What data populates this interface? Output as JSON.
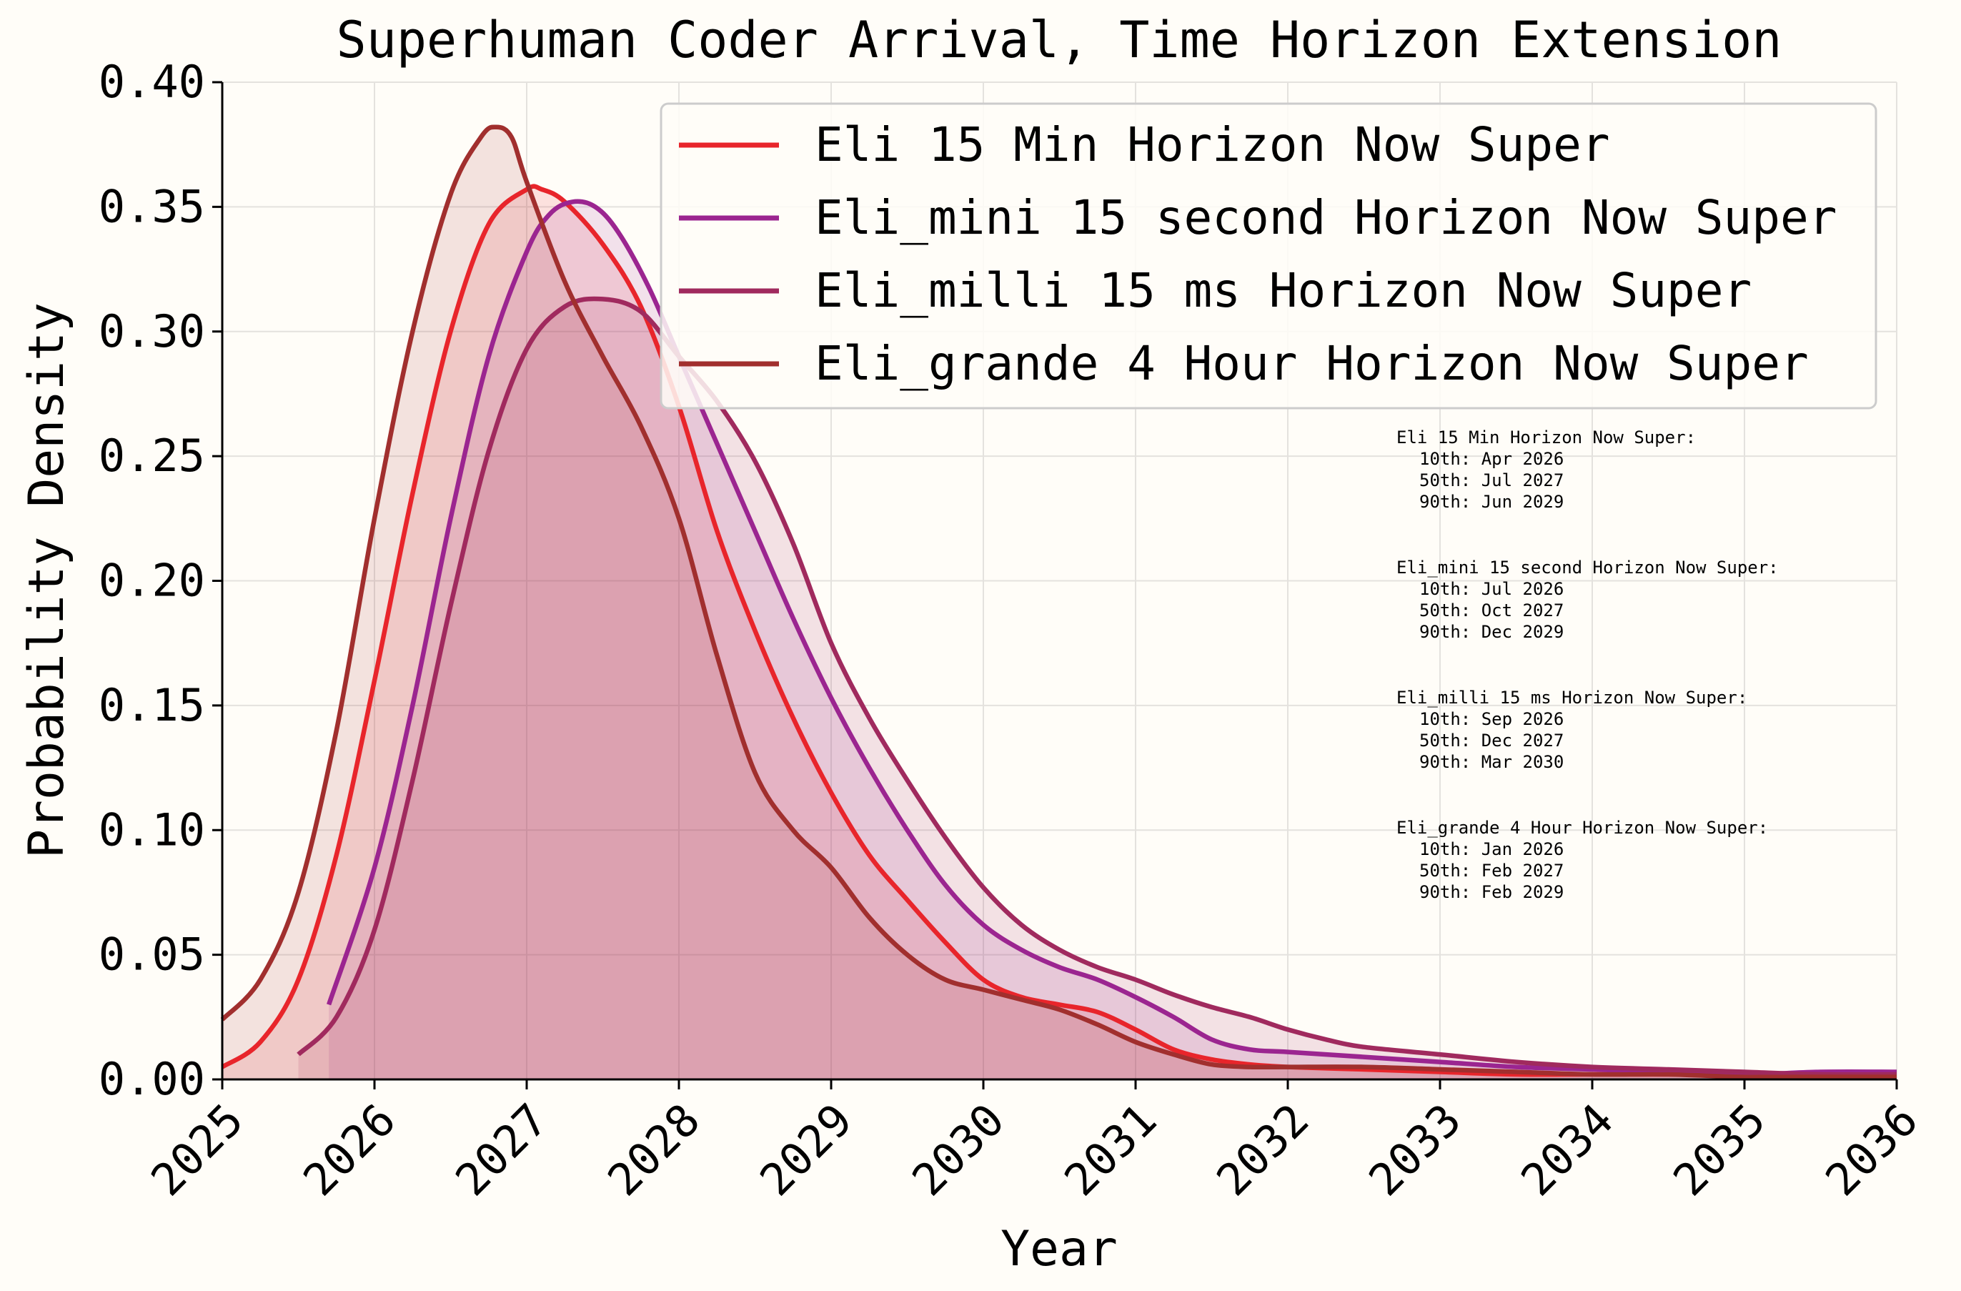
{
  "chart_data": {
    "type": "line",
    "title": "Superhuman Coder Arrival, Time Horizon Extension",
    "xlabel": "Year",
    "ylabel": "Probability Density",
    "xlim": [
      2025,
      2036
    ],
    "ylim": [
      0,
      0.4
    ],
    "grid": true,
    "legend_position": "top-right",
    "x_ticks": [
      "2025",
      "2026",
      "2027",
      "2028",
      "2029",
      "2030",
      "2031",
      "2032",
      "2033",
      "2034",
      "2035",
      "2036"
    ],
    "y_ticks": [
      "0.00",
      "0.05",
      "0.10",
      "0.15",
      "0.20",
      "0.25",
      "0.30",
      "0.35",
      "0.40"
    ],
    "series": [
      {
        "name": "Eli 15 Min Horizon Now Super",
        "color": "#e8252b",
        "x": [
          2025.0,
          2025.25,
          2025.5,
          2025.75,
          2026.0,
          2026.25,
          2026.5,
          2026.75,
          2027.0,
          2027.1,
          2027.25,
          2027.5,
          2027.75,
          2028.0,
          2028.25,
          2028.5,
          2028.75,
          2029.0,
          2029.25,
          2029.5,
          2029.75,
          2030.0,
          2030.25,
          2030.5,
          2030.75,
          2031.0,
          2031.25,
          2031.5,
          2031.75,
          2032.0,
          2032.5,
          2033.0,
          2033.5,
          2034.0,
          2034.5,
          2035.0,
          2035.5,
          2036.0
        ],
        "y": [
          0.005,
          0.015,
          0.04,
          0.09,
          0.16,
          0.235,
          0.3,
          0.343,
          0.357,
          0.357,
          0.352,
          0.335,
          0.31,
          0.27,
          0.22,
          0.18,
          0.145,
          0.115,
          0.09,
          0.072,
          0.055,
          0.04,
          0.033,
          0.03,
          0.027,
          0.02,
          0.012,
          0.008,
          0.006,
          0.005,
          0.004,
          0.003,
          0.002,
          0.002,
          0.002,
          0.002,
          0.002,
          0.002
        ]
      },
      {
        "name": "Eli_mini 15 second Horizon Now Super",
        "color": "#9b2590",
        "x": [
          2025.7,
          2026.0,
          2026.25,
          2026.5,
          2026.75,
          2027.0,
          2027.15,
          2027.3,
          2027.45,
          2027.6,
          2027.8,
          2028.0,
          2028.25,
          2028.5,
          2028.75,
          2029.0,
          2029.25,
          2029.5,
          2029.75,
          2030.0,
          2030.25,
          2030.5,
          2030.75,
          2031.0,
          2031.25,
          2031.5,
          2031.75,
          2032.0,
          2032.5,
          2033.0,
          2033.5,
          2034.0,
          2034.5,
          2035.0,
          2035.5,
          2036.0
        ],
        "y": [
          0.03,
          0.085,
          0.15,
          0.225,
          0.29,
          0.332,
          0.347,
          0.352,
          0.35,
          0.34,
          0.318,
          0.29,
          0.255,
          0.22,
          0.185,
          0.153,
          0.125,
          0.1,
          0.078,
          0.062,
          0.052,
          0.045,
          0.04,
          0.033,
          0.025,
          0.016,
          0.012,
          0.011,
          0.009,
          0.007,
          0.005,
          0.004,
          0.003,
          0.002,
          0.003,
          0.003
        ]
      },
      {
        "name": "Eli_milli 15 ms Horizon Now Super",
        "color": "#a02a5e",
        "x": [
          2025.5,
          2025.75,
          2026.0,
          2026.25,
          2026.5,
          2026.75,
          2027.0,
          2027.25,
          2027.5,
          2027.75,
          2028.0,
          2028.25,
          2028.5,
          2028.75,
          2029.0,
          2029.25,
          2029.5,
          2029.75,
          2030.0,
          2030.25,
          2030.5,
          2030.75,
          2031.0,
          2031.25,
          2031.5,
          2031.75,
          2032.0,
          2032.25,
          2032.5,
          2033.0,
          2033.5,
          2034.0,
          2034.5,
          2035.0,
          2035.5,
          2036.0
        ],
        "y": [
          0.01,
          0.025,
          0.06,
          0.12,
          0.19,
          0.252,
          0.293,
          0.31,
          0.313,
          0.308,
          0.29,
          0.272,
          0.248,
          0.215,
          0.175,
          0.145,
          0.12,
          0.097,
          0.077,
          0.062,
          0.052,
          0.045,
          0.04,
          0.034,
          0.029,
          0.025,
          0.02,
          0.016,
          0.013,
          0.01,
          0.007,
          0.005,
          0.004,
          0.003,
          0.002,
          0.002
        ]
      },
      {
        "name": "Eli_grande 4 Hour Horizon Now Super",
        "color": "#a12f2e",
        "x": [
          2025.0,
          2025.25,
          2025.5,
          2025.75,
          2026.0,
          2026.25,
          2026.5,
          2026.7,
          2026.8,
          2026.9,
          2027.0,
          2027.25,
          2027.5,
          2027.75,
          2028.0,
          2028.25,
          2028.5,
          2028.75,
          2029.0,
          2029.25,
          2029.5,
          2029.75,
          2030.0,
          2030.25,
          2030.5,
          2030.75,
          2031.0,
          2031.25,
          2031.5,
          2031.75,
          2032.0,
          2032.5,
          2033.0,
          2033.5,
          2034.0,
          2034.5,
          2035.0,
          2035.5,
          2036.0
        ],
        "y": [
          0.024,
          0.04,
          0.075,
          0.14,
          0.225,
          0.3,
          0.355,
          0.378,
          0.382,
          0.378,
          0.36,
          0.32,
          0.29,
          0.262,
          0.225,
          0.17,
          0.123,
          0.1,
          0.085,
          0.065,
          0.05,
          0.04,
          0.036,
          0.032,
          0.028,
          0.022,
          0.015,
          0.01,
          0.006,
          0.005,
          0.005,
          0.005,
          0.004,
          0.003,
          0.002,
          0.002,
          0.001,
          0.001,
          0.001
        ]
      }
    ],
    "annotations": [
      {
        "title": "Eli 15 Min Horizon Now Super:",
        "lines": [
          "10th: Apr 2026",
          "50th: Jul 2027",
          "90th: Jun 2029"
        ]
      },
      {
        "title": "Eli_mini 15 second Horizon Now Super:",
        "lines": [
          "10th: Jul 2026",
          "50th: Oct 2027",
          "90th: Dec 2029"
        ]
      },
      {
        "title": "Eli_milli 15 ms Horizon Now Super:",
        "lines": [
          "10th: Sep 2026",
          "50th: Dec 2027",
          "90th: Mar 2030"
        ]
      },
      {
        "title": "Eli_grande 4 Hour Horizon Now Super:",
        "lines": [
          "10th: Jan 2026",
          "50th: Feb 2027",
          "90th: Feb 2029"
        ]
      }
    ]
  }
}
